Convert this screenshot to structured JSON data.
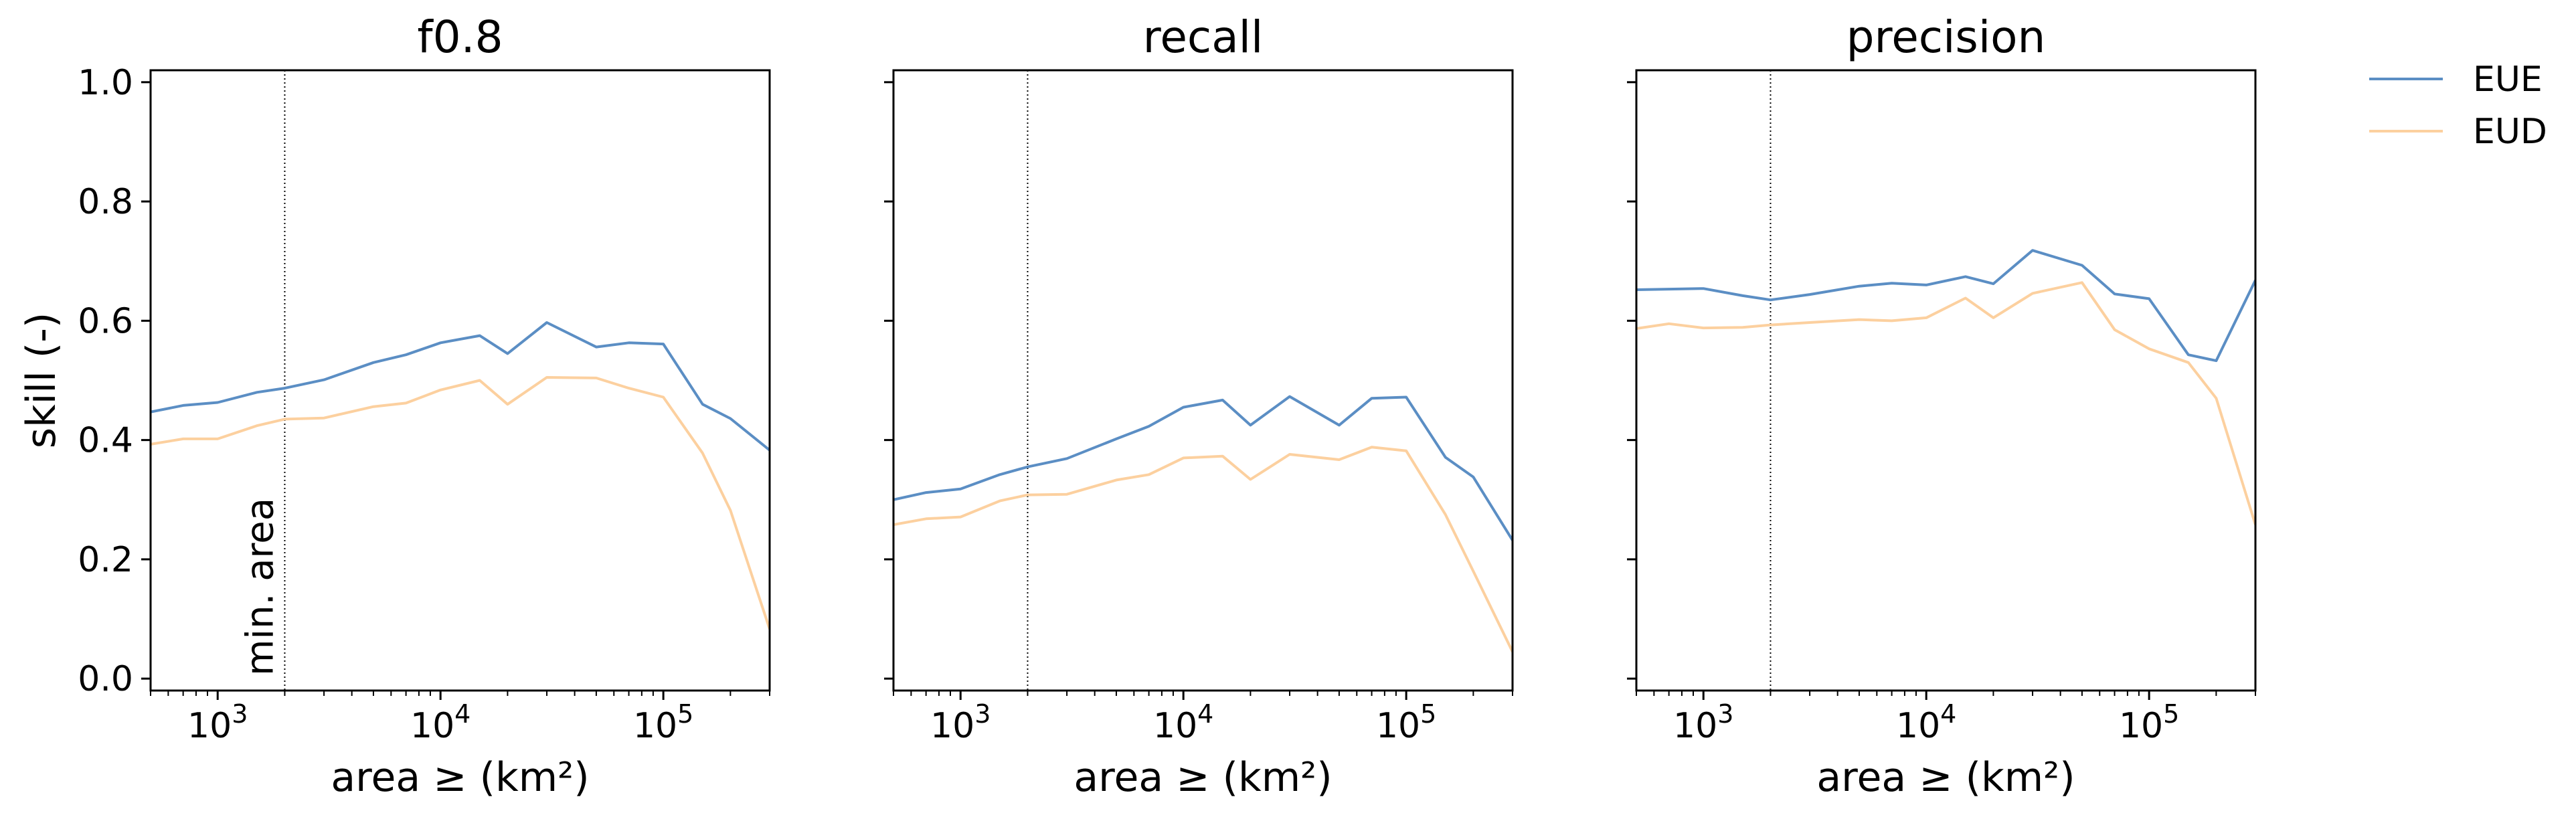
{
  "chart_data": {
    "type": "line",
    "ylabel": "skill (-)",
    "ylim": [
      -0.02,
      1.02
    ],
    "yticks": [
      "0.0",
      "0.2",
      "0.4",
      "0.6",
      "0.8",
      "1.0"
    ],
    "xscale": "log",
    "xlim": [
      500,
      300000
    ],
    "xticks": [
      {
        "base": "10",
        "exp": "3"
      },
      {
        "base": "10",
        "exp": "4"
      },
      {
        "base": "10",
        "exp": "5"
      }
    ],
    "grid": false,
    "legend_position": "right",
    "min_area_value": 2000,
    "min_area_label": "min. area",
    "series_info": [
      {
        "name": "EUE",
        "color": "#5b8ec4"
      },
      {
        "name": "EUD",
        "color": "#fcd09f"
      }
    ],
    "x": [
      500,
      700,
      1000,
      1500,
      2000,
      3000,
      5000,
      7000,
      10000,
      15000,
      20000,
      30000,
      50000,
      70000,
      100000,
      150000,
      200000,
      300000
    ],
    "panels": [
      {
        "title": "f0.8",
        "xlabel": "area ≥ (km²)",
        "series": [
          {
            "name": "EUE",
            "values": [
              0.447,
              0.458,
              0.463,
              0.48,
              0.487,
              0.501,
              0.53,
              0.543,
              0.563,
              0.575,
              0.545,
              0.597,
              0.556,
              0.563,
              0.561,
              0.46,
              0.436,
              0.383
            ]
          },
          {
            "name": "EUD",
            "values": [
              0.393,
              0.402,
              0.402,
              0.424,
              0.435,
              0.437,
              0.456,
              0.462,
              0.484,
              0.5,
              0.46,
              0.505,
              0.504,
              0.487,
              0.472,
              0.378,
              0.282,
              0.083
            ]
          }
        ]
      },
      {
        "title": "recall",
        "xlabel": "area ≥ (km²)",
        "series": [
          {
            "name": "EUE",
            "values": [
              0.3,
              0.312,
              0.318,
              0.342,
              0.355,
              0.369,
              0.402,
              0.423,
              0.455,
              0.467,
              0.425,
              0.473,
              0.425,
              0.47,
              0.472,
              0.371,
              0.338,
              0.232
            ]
          },
          {
            "name": "EUD",
            "values": [
              0.258,
              0.268,
              0.271,
              0.298,
              0.308,
              0.309,
              0.333,
              0.342,
              0.37,
              0.373,
              0.334,
              0.376,
              0.367,
              0.388,
              0.382,
              0.275,
              0.18,
              0.045
            ]
          }
        ]
      },
      {
        "title": "precision",
        "xlabel": "area ≥ (km²)",
        "series": [
          {
            "name": "EUE",
            "values": [
              0.652,
              0.653,
              0.654,
              0.642,
              0.635,
              0.644,
              0.658,
              0.663,
              0.66,
              0.674,
              0.662,
              0.718,
              0.693,
              0.645,
              0.637,
              0.543,
              0.533,
              0.668
            ]
          },
          {
            "name": "EUD",
            "values": [
              0.587,
              0.595,
              0.588,
              0.589,
              0.593,
              0.597,
              0.602,
              0.6,
              0.605,
              0.638,
              0.605,
              0.646,
              0.664,
              0.585,
              0.553,
              0.53,
              0.47,
              0.258
            ]
          }
        ]
      }
    ]
  }
}
